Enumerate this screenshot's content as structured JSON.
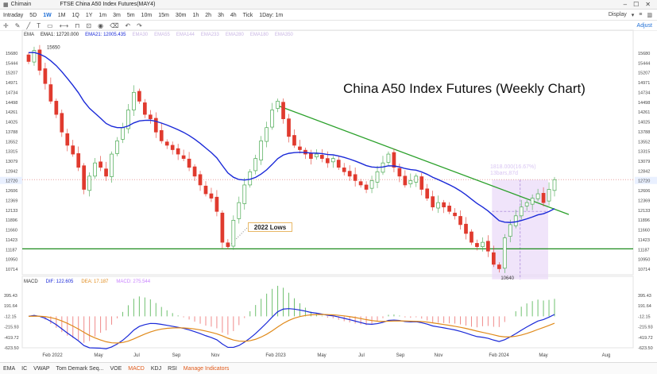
{
  "window": {
    "app_name": "Chimain",
    "title": "FTSE China A50 Index Futures(MAY4)"
  },
  "toolbar": {
    "timeframes": [
      "Intraday",
      "5D",
      "1W",
      "1M",
      "1Q",
      "1Y",
      "1m",
      "3m",
      "5m",
      "10m",
      "15m",
      "30m",
      "1h",
      "2h",
      "3h",
      "4h",
      "Tick",
      "1Day: 1m"
    ],
    "active": "1W",
    "display_label": "Display"
  },
  "drawbar": {
    "adjust_label": "Adjust"
  },
  "legend": {
    "name": "EMA",
    "ema1": "EMA1: 12720.000",
    "ema2": "EMA21: 12005.435",
    "faded": [
      "EMA30",
      "EMA55",
      "EMA144",
      "EMA233",
      "EMA280",
      "EMA180",
      "EMA350"
    ]
  },
  "macd_legend": {
    "name": "MACD",
    "dif": "DIF: 122.605",
    "dea": "DEA: 17.187",
    "macd": "MACD: 275.544"
  },
  "annotations": {
    "title": "China A50 Index Futures (Weekly Chart)",
    "lows_note": "2022 Lows",
    "sel_line1": "1818.000(16.67%)",
    "sel_line2": "13bars,87d",
    "high_label": "15650",
    "low_label": "10640"
  },
  "price_axis": [
    "15680",
    "15444",
    "15207",
    "14971",
    "14734",
    "14498",
    "14261",
    "14025",
    "13788",
    "13552",
    "13315",
    "13079",
    "12842",
    "12720",
    "12606",
    "12369",
    "12133",
    "11896",
    "11660",
    "11423",
    "11187",
    "10950",
    "10714"
  ],
  "macd_axis": [
    "395.43",
    "191.64",
    "-12.15",
    "-215.93",
    "-419.72",
    "-623.50"
  ],
  "time_axis": [
    "Feb 2022",
    "May",
    "Jul",
    "Sep",
    "Nov",
    "Feb 2023",
    "May",
    "Jul",
    "Sep",
    "Nov",
    "Feb 2024",
    "May",
    "Aug"
  ],
  "indicators": [
    "EMA",
    "IC",
    "VWAP",
    "Tom Demark Seq...",
    "VOE",
    "MACD",
    "KDJ",
    "RSI",
    "Manage Indicators"
  ],
  "colors": {
    "up": "#48a850",
    "down": "#e03a2e",
    "ema_fast": "#1a29d8",
    "macd_dea": "#e08a1a",
    "trendline": "#2aa02a",
    "support": "#1c8c1c",
    "selection": "#ead9f8"
  },
  "chart_data": {
    "type": "candlestick",
    "title": "China A50 Index Futures (Weekly Chart)",
    "period": "weekly",
    "ylim": [
      10600,
      15750
    ],
    "close_series": [
      15400,
      15650,
      15200,
      14900,
      14500,
      14200,
      13800,
      13500,
      13300,
      13000,
      12500,
      12800,
      13100,
      13000,
      12800,
      13300,
      13600,
      13900,
      14300,
      14700,
      14500,
      14200,
      14100,
      13800,
      13600,
      13500,
      13400,
      13300,
      13200,
      13000,
      12800,
      12600,
      12400,
      12300,
      12000,
      11300,
      11200,
      11800,
      12200,
      12600,
      12900,
      13200,
      13600,
      13900,
      14300,
      14500,
      14100,
      13700,
      13500,
      13400,
      13300,
      13200,
      13300,
      13200,
      13100,
      13200,
      13000,
      12900,
      12800,
      12700,
      12600,
      12500,
      12700,
      12900,
      13100,
      13300,
      13000,
      12800,
      12600,
      12700,
      12800,
      12500,
      12300,
      12100,
      12200,
      12100,
      12000,
      11900,
      11700,
      11500,
      11300,
      11200,
      11300,
      11100,
      10800,
      10700,
      11400,
      11700,
      11900,
      12100,
      12200,
      12300,
      12400,
      12200,
      12500,
      12720
    ],
    "ema21_start": 15600,
    "ema21_end": 12005.435,
    "macd_dif": 122.605,
    "macd_dea": 17.187,
    "macd_hist": 275.544
  }
}
